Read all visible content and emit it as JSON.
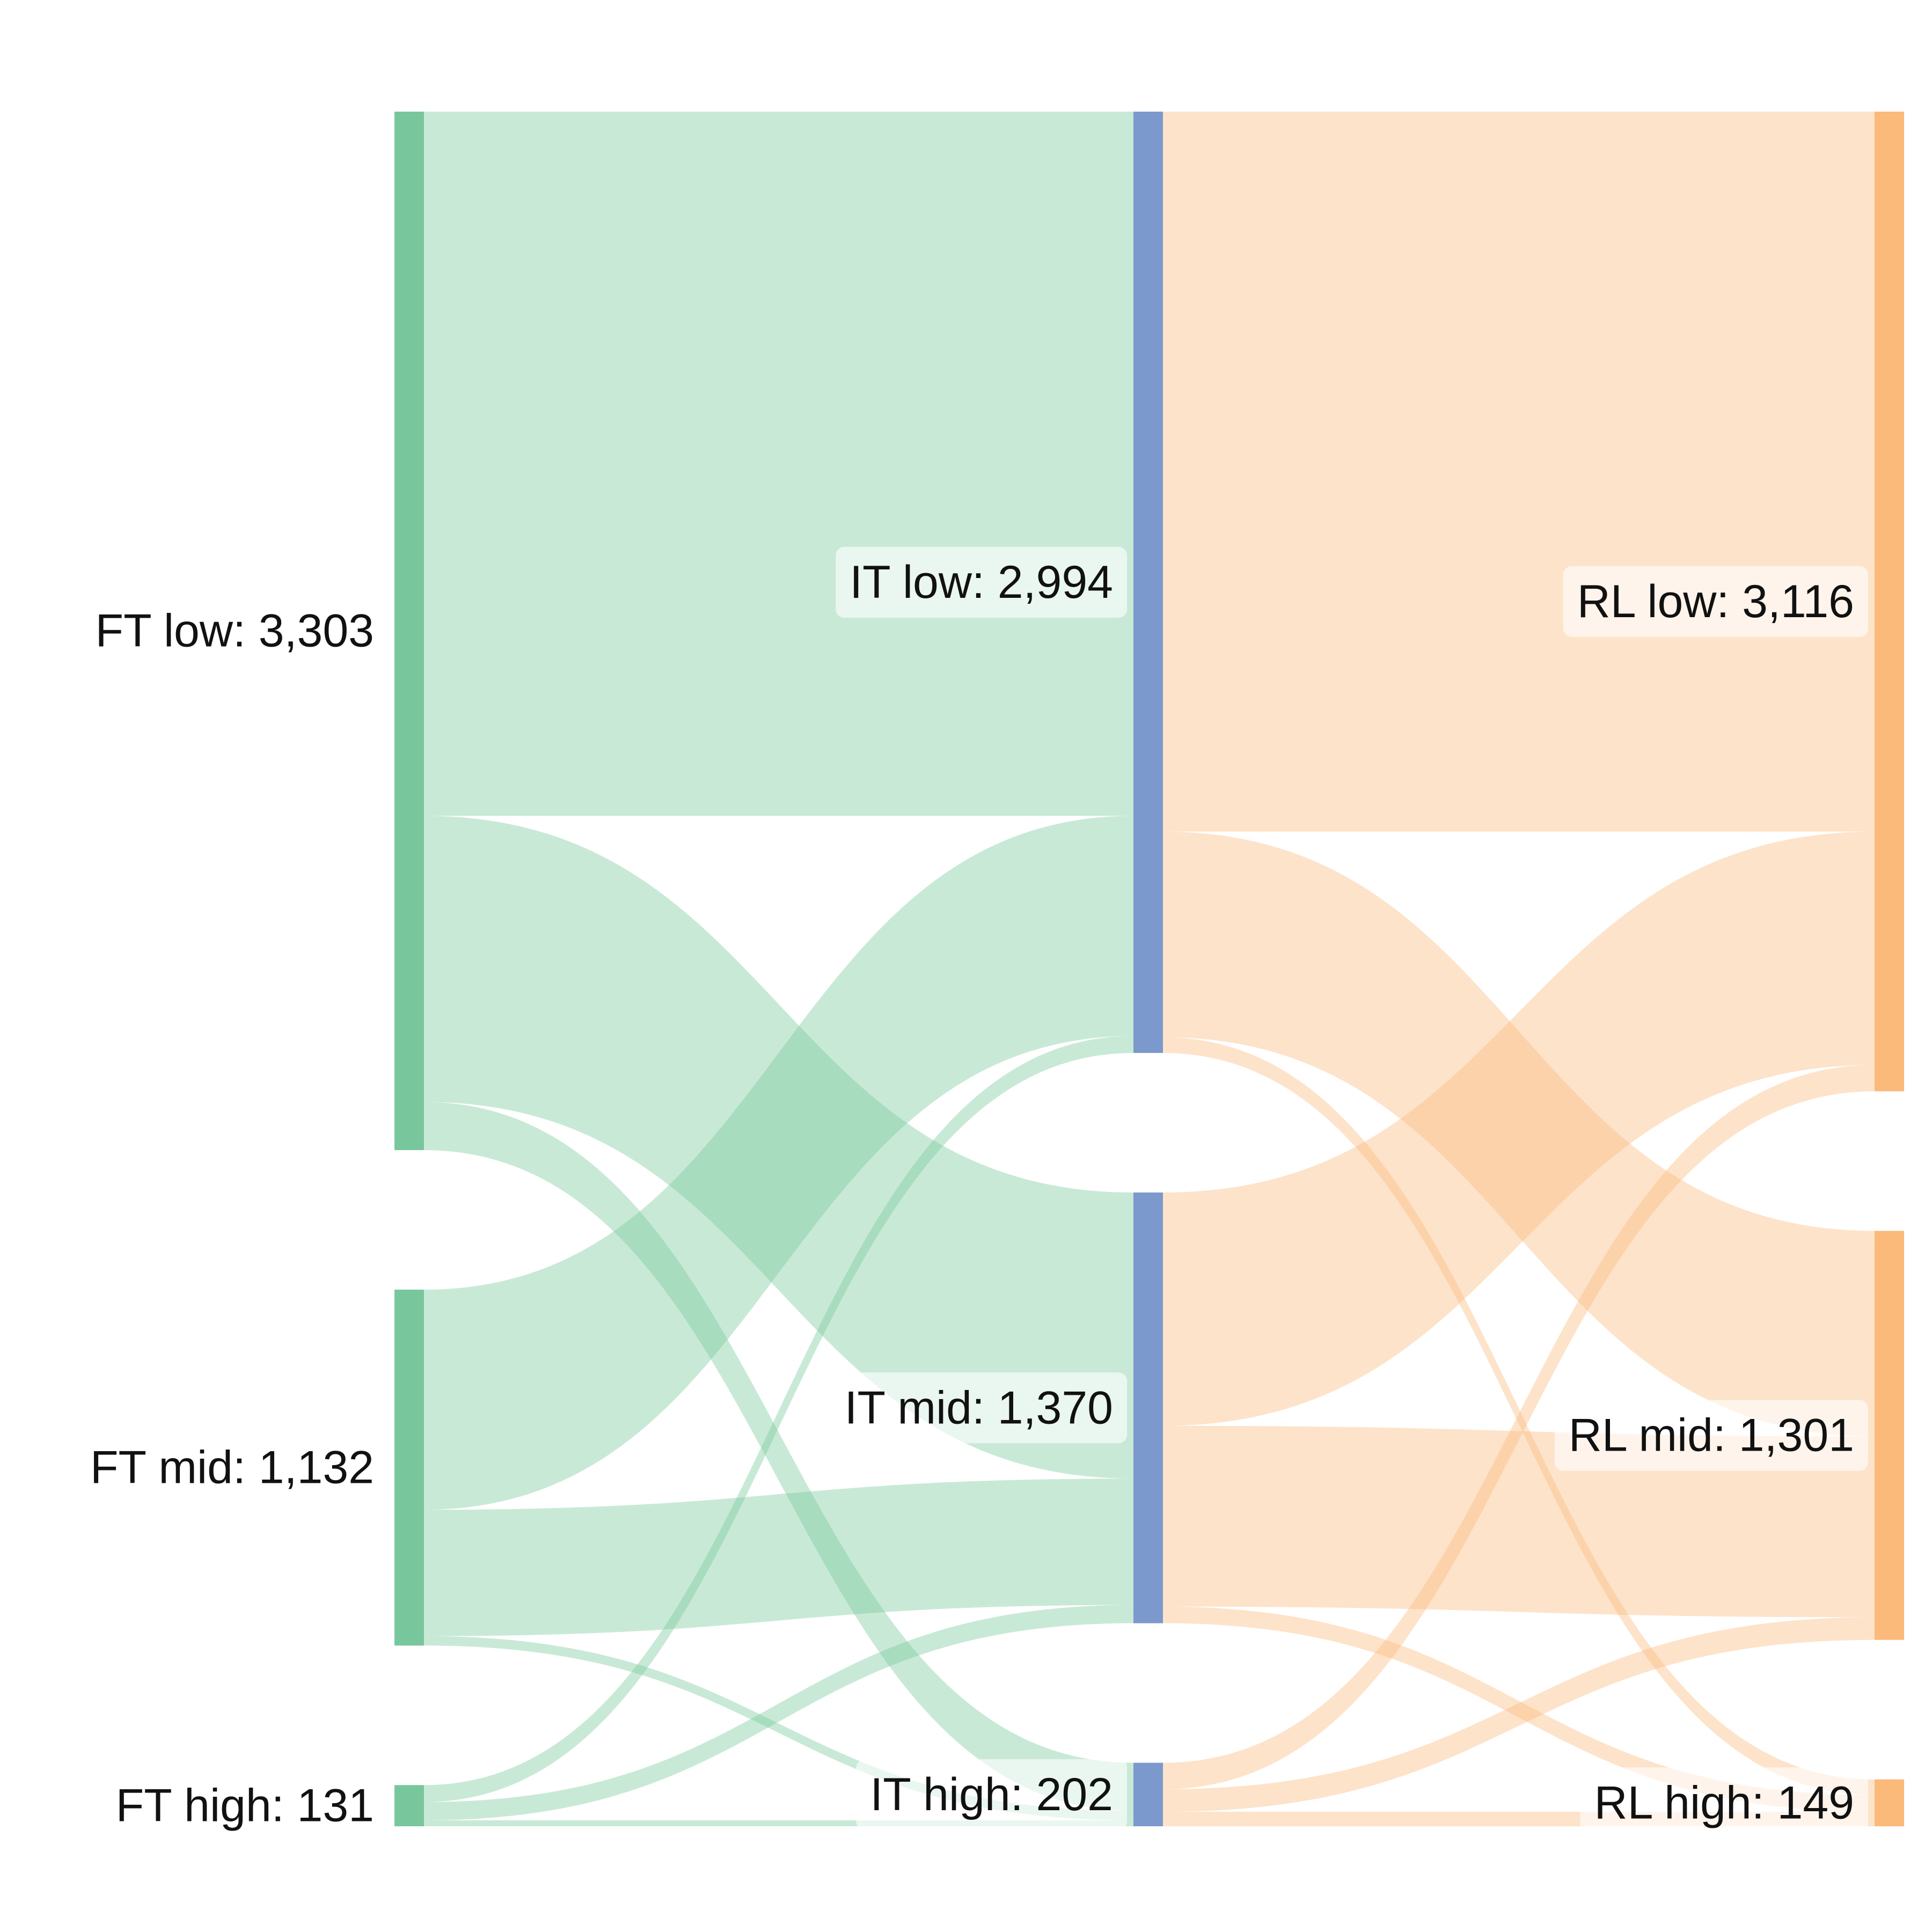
{
  "chart_data": {
    "type": "sankey",
    "title": "",
    "stages": [
      {
        "key": "FT",
        "color": "#78c79c",
        "link_color": "#78c79c",
        "label_side": "left",
        "nodes": [
          {
            "id": "FT_low",
            "label": "FT low: 3,303",
            "value": 3303
          },
          {
            "id": "FT_mid",
            "label": "FT mid: 1,132",
            "value": 1132
          },
          {
            "id": "FT_high",
            "label": "FT high: 131",
            "value": 131
          }
        ]
      },
      {
        "key": "IT",
        "color": "#7b99cc",
        "link_color": "#fbb97a",
        "label_side": "left",
        "label_box": true,
        "nodes": [
          {
            "id": "IT_low",
            "label": "IT low: 2,994",
            "value": 2994
          },
          {
            "id": "IT_mid",
            "label": "IT mid: 1,370",
            "value": 1370
          },
          {
            "id": "IT_high",
            "label": "IT high: 202",
            "value": 202
          }
        ]
      },
      {
        "key": "RL",
        "color": "#fbb97a",
        "label_side": "left",
        "label_box": true,
        "nodes": [
          {
            "id": "RL_low",
            "label": "RL low: 3,116",
            "value": 3116
          },
          {
            "id": "RL_mid",
            "label": "RL mid: 1,301",
            "value": 1301
          },
          {
            "id": "RL_high",
            "label": "RL high: 149",
            "value": 149
          }
        ]
      }
    ],
    "links": [
      {
        "source": "FT_low",
        "target": "IT_low",
        "value": 2240
      },
      {
        "source": "FT_low",
        "target": "IT_mid",
        "value": 910
      },
      {
        "source": "FT_low",
        "target": "IT_high",
        "value": 153
      },
      {
        "source": "FT_mid",
        "target": "IT_low",
        "value": 700
      },
      {
        "source": "FT_mid",
        "target": "IT_mid",
        "value": 402
      },
      {
        "source": "FT_mid",
        "target": "IT_high",
        "value": 30
      },
      {
        "source": "FT_high",
        "target": "IT_low",
        "value": 54
      },
      {
        "source": "FT_high",
        "target": "IT_mid",
        "value": 58
      },
      {
        "source": "FT_high",
        "target": "IT_high",
        "value": 19
      },
      {
        "source": "IT_low",
        "target": "RL_low",
        "value": 2290
      },
      {
        "source": "IT_low",
        "target": "RL_mid",
        "value": 654
      },
      {
        "source": "IT_low",
        "target": "RL_high",
        "value": 50
      },
      {
        "source": "IT_mid",
        "target": "RL_low",
        "value": 742
      },
      {
        "source": "IT_mid",
        "target": "RL_mid",
        "value": 575
      },
      {
        "source": "IT_mid",
        "target": "RL_high",
        "value": 53
      },
      {
        "source": "IT_high",
        "target": "RL_low",
        "value": 84
      },
      {
        "source": "IT_high",
        "target": "RL_mid",
        "value": 72
      },
      {
        "source": "IT_high",
        "target": "RL_high",
        "value": 46
      }
    ]
  }
}
